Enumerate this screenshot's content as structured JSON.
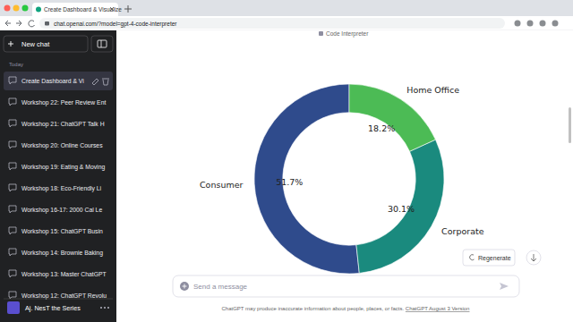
{
  "browser": {
    "tab_title": "Create Dashboard & Visualize",
    "url": "chat.openai.com/?model=gpt-4-code-interpreter"
  },
  "sidebar": {
    "new_chat": "New chat",
    "section": "Today",
    "chats": [
      "Create Dashboard & Vi",
      "Workshop 22: Peer Review Ent",
      "Workshop 21: ChatGPT Talk H",
      "Workshop 20: Online Courses",
      "Workshop 19: Eating & Moving",
      "Workshop 18: Eco-Friendly Li",
      "Workshop 16-17: 2000 Cal Le",
      "Workshop 15: ChatGPT Busin",
      "Workshop 14: Brownie Baking",
      "Workshop 13: Master ChatGPT",
      "Workshop 12: ChatGPT Revolu"
    ],
    "user": "Aj. NesT the Series"
  },
  "header": {
    "model": "Code Interpreter"
  },
  "chart_data": {
    "type": "donut",
    "categories": [
      "Consumer",
      "Corporate",
      "Home Office"
    ],
    "values": [
      51.7,
      30.1,
      18.2
    ],
    "value_labels": [
      "51.7%",
      "30.1%",
      "18.2%"
    ],
    "colors": [
      "#2f4b8c",
      "#1a8a7e",
      "#4cbb55"
    ],
    "data_labels": true
  },
  "actions": {
    "regenerate": "Regenerate"
  },
  "composer": {
    "placeholder": "Send a message"
  },
  "footer": {
    "disclaimer": "ChatGPT may produce inaccurate information about people, places, or facts.",
    "version_link": "ChatGPT August 3 Version"
  }
}
